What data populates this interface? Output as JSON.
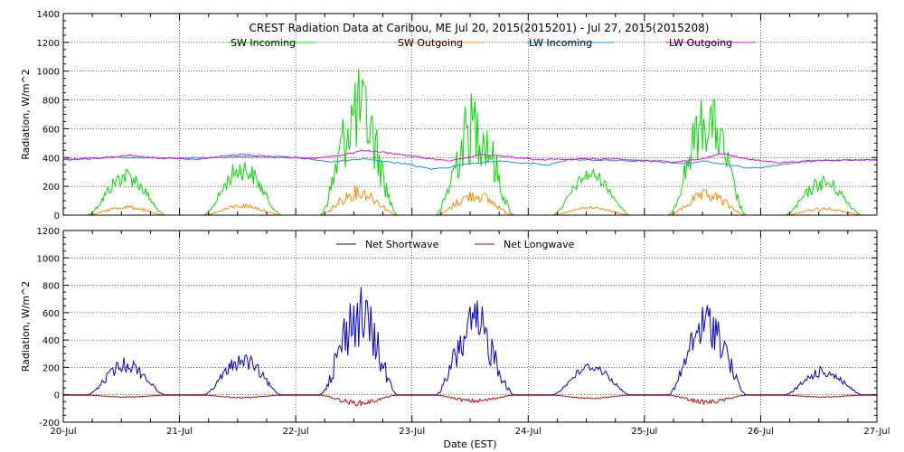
{
  "chart_data": {
    "type": "line",
    "title": "CREST Radiation Data at Caribou, ME   Jul 20, 2015(2015201) - Jul 27, 2015(2015208)",
    "xlabel": "Date (EST)",
    "x_ticks": [
      "20-Jul",
      "21-Jul",
      "22-Jul",
      "23-Jul",
      "24-Jul",
      "25-Jul",
      "26-Jul",
      "27-Jul"
    ],
    "xlim_days": [
      0,
      7
    ],
    "note": "values are daily [sunrise, noon, sunset] envelopes in hours since 20-Jul 00:00 EST (nighttime values in night_level); jagged cloud variation between points",
    "panels": [
      {
        "ylabel": "Radiation, W/m^2",
        "ylim": [
          0,
          1400
        ],
        "yticks": [
          0,
          200,
          400,
          600,
          800,
          1000,
          1200,
          1400
        ],
        "grid": true,
        "series": [
          {
            "name": "SW Incoming",
            "color": "#00dd00",
            "days": [
              {
                "start": 5,
                "noon": 13,
                "end": 21,
                "peak": 340,
                "variability": 0.4
              },
              {
                "start": 29,
                "noon": 37,
                "end": 45,
                "peak": 400,
                "variability": 0.4
              },
              {
                "start": 53,
                "noon": 61,
                "end": 69,
                "peak": 1020,
                "variability": 0.6
              },
              {
                "start": 77,
                "noon": 85,
                "end": 93,
                "peak": 880,
                "variability": 0.6
              },
              {
                "start": 101,
                "noon": 109,
                "end": 117,
                "peak": 330,
                "variability": 0.3
              },
              {
                "start": 125,
                "noon": 133,
                "end": 141,
                "peak": 870,
                "variability": 0.5
              },
              {
                "start": 149,
                "noon": 157,
                "end": 165,
                "peak": 280,
                "variability": 0.4
              }
            ],
            "night_level": 0
          },
          {
            "name": "SW Outgoing",
            "color": "#ff8800",
            "days": [
              {
                "start": 5,
                "noon": 13,
                "end": 21,
                "peak": 70,
                "variability": 0.4
              },
              {
                "start": 29,
                "noon": 37,
                "end": 45,
                "peak": 80,
                "variability": 0.4
              },
              {
                "start": 53,
                "noon": 61,
                "end": 69,
                "peak": 210,
                "variability": 0.5
              },
              {
                "start": 77,
                "noon": 85,
                "end": 93,
                "peak": 180,
                "variability": 0.5
              },
              {
                "start": 101,
                "noon": 109,
                "end": 117,
                "peak": 60,
                "variability": 0.3
              },
              {
                "start": 125,
                "noon": 133,
                "end": 141,
                "peak": 180,
                "variability": 0.5
              },
              {
                "start": 149,
                "noon": 157,
                "end": 165,
                "peak": 55,
                "variability": 0.4
              }
            ],
            "night_level": 0
          },
          {
            "name": "LW Incoming",
            "color": "#1199dd",
            "x_hours": [
              0,
              12,
              24,
              36,
              48,
              55,
              62,
              70,
              76,
              80,
              84,
              90,
              96,
              100,
              104,
              112,
              120,
              128,
              133,
              138,
              142,
              146,
              150,
              156,
              168
            ],
            "values": [
              385,
              400,
              395,
              405,
              400,
              370,
              390,
              360,
              320,
              335,
              360,
              375,
              360,
              345,
              385,
              380,
              375,
              360,
              375,
              345,
              325,
              340,
              360,
              380,
              385
            ]
          },
          {
            "name": "LW Outgoing",
            "color": "#ee00ee",
            "x_hours": [
              0,
              8,
              14,
              20,
              28,
              36,
              44,
              52,
              58,
              62,
              68,
              74,
              80,
              86,
              92,
              98,
              104,
              112,
              120,
              126,
              132,
              136,
              142,
              148,
              156,
              168
            ],
            "values": [
              385,
              400,
              415,
              395,
              390,
              420,
              405,
              395,
              420,
              450,
              430,
              400,
              375,
              420,
              405,
              385,
              390,
              390,
              380,
              370,
              390,
              430,
              385,
              365,
              380,
              385
            ]
          }
        ]
      },
      {
        "ylabel": "Radiation, W/m^2",
        "ylim": [
          -200,
          1200
        ],
        "yticks": [
          -200,
          0,
          200,
          400,
          600,
          800,
          1000,
          1200
        ],
        "grid": true,
        "series": [
          {
            "name": "Net Shortwave",
            "color": "#0000cc",
            "days": [
              {
                "start": 5,
                "noon": 13,
                "end": 21,
                "peak": 275,
                "variability": 0.4
              },
              {
                "start": 29,
                "noon": 37,
                "end": 45,
                "peak": 310,
                "variability": 0.4
              },
              {
                "start": 53,
                "noon": 61,
                "end": 69,
                "peak": 810,
                "variability": 0.6
              },
              {
                "start": 77,
                "noon": 85,
                "end": 93,
                "peak": 700,
                "variability": 0.6
              },
              {
                "start": 101,
                "noon": 109,
                "end": 117,
                "peak": 240,
                "variability": 0.3
              },
              {
                "start": 125,
                "noon": 133,
                "end": 141,
                "peak": 690,
                "variability": 0.5
              },
              {
                "start": 149,
                "noon": 157,
                "end": 165,
                "peak": 210,
                "variability": 0.4
              }
            ],
            "night_level": 0
          },
          {
            "name": "Net Longwave",
            "color": "#cc0000",
            "days": [
              {
                "start": 5,
                "noon": 13,
                "end": 21,
                "peak": -20,
                "variability": 0.4
              },
              {
                "start": 29,
                "noon": 37,
                "end": 45,
                "peak": -25,
                "variability": 0.4
              },
              {
                "start": 53,
                "noon": 61,
                "end": 69,
                "peak": -80,
                "variability": 0.5
              },
              {
                "start": 77,
                "noon": 85,
                "end": 93,
                "peak": -60,
                "variability": 0.5
              },
              {
                "start": 101,
                "noon": 109,
                "end": 117,
                "peak": -30,
                "variability": 0.3
              },
              {
                "start": 125,
                "noon": 133,
                "end": 141,
                "peak": -70,
                "variability": 0.5
              },
              {
                "start": 149,
                "noon": 157,
                "end": 165,
                "peak": -20,
                "variability": 0.4
              }
            ],
            "night_level": -3
          }
        ]
      }
    ]
  }
}
